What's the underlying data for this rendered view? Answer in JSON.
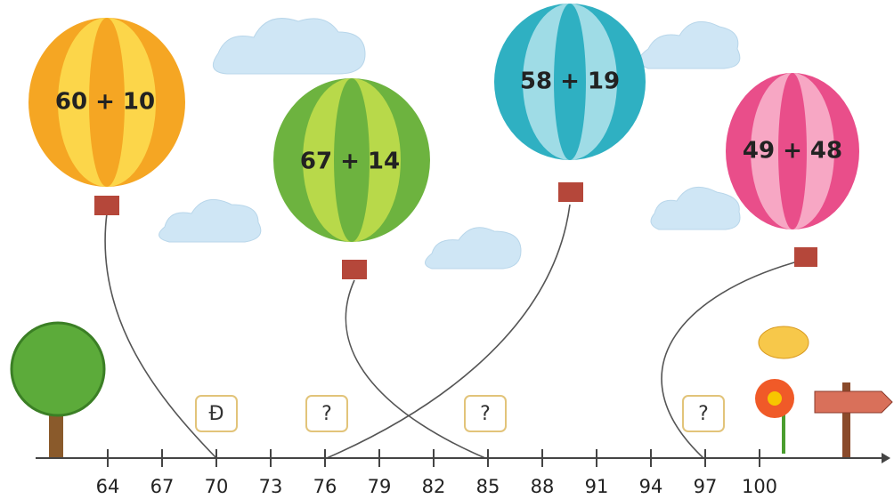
{
  "balloons": [
    {
      "label": "60 + 10"
    },
    {
      "label": "67 + 14"
    },
    {
      "label": "58 + 19"
    },
    {
      "label": "49 + 48"
    }
  ],
  "answer_boxes": [
    "Đ",
    "?",
    "?",
    "?"
  ],
  "number_line": {
    "ticks": [
      "64",
      "67",
      "70",
      "73",
      "76",
      "79",
      "82",
      "85",
      "88",
      "91",
      "94",
      "97",
      "100"
    ]
  }
}
